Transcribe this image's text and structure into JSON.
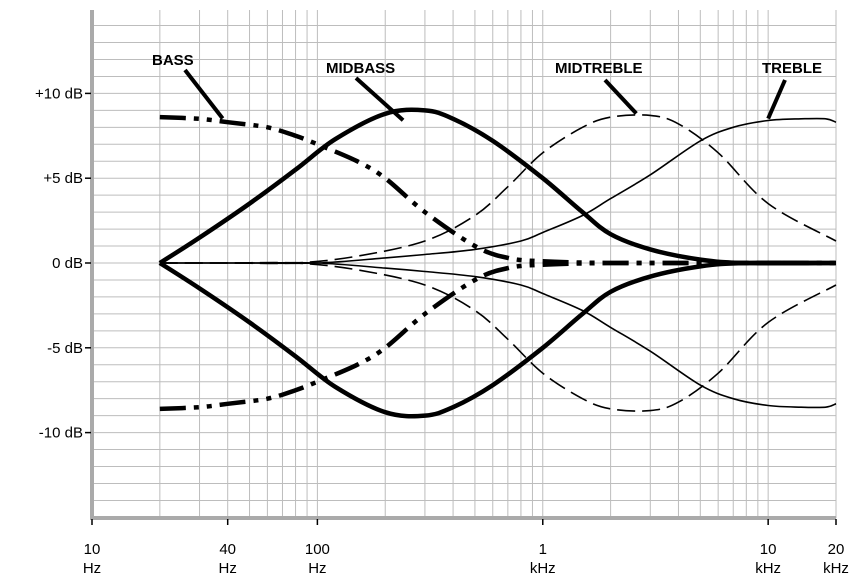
{
  "chart_data": {
    "type": "line",
    "title": "",
    "xlabel": "",
    "ylabel": "",
    "x_scale": "log",
    "xlim": [
      10,
      20000
    ],
    "ylim": [
      -15,
      15
    ],
    "grid": true,
    "x_ticks": [
      {
        "value": 10,
        "line1": "10",
        "line2": "Hz"
      },
      {
        "value": 40,
        "line1": "40",
        "line2": "Hz"
      },
      {
        "value": 100,
        "line1": "100",
        "line2": "Hz"
      },
      {
        "value": 1000,
        "line1": "1",
        "line2": "kHz"
      },
      {
        "value": 10000,
        "line1": "10",
        "line2": "kHz"
      },
      {
        "value": 20000,
        "line1": "20",
        "line2": "kHz"
      }
    ],
    "y_ticks": [
      {
        "value": 10,
        "label": "+10 dB"
      },
      {
        "value": 5,
        "label": "+5 dB"
      },
      {
        "value": 0,
        "label": "0 dB"
      },
      {
        "value": -5,
        "label": "-5 dB"
      },
      {
        "value": -10,
        "label": "-10 dB"
      }
    ],
    "band_labels": [
      "BASS",
      "MIDBASS",
      "MIDTREBLE",
      "TREBLE"
    ],
    "series": [
      {
        "band": "BASS",
        "style": "thick-dashdot",
        "x": [
          20,
          30,
          40,
          60,
          80,
          100,
          150,
          200,
          300,
          500,
          700,
          1000,
          2000,
          5000,
          20000
        ],
        "y": [
          8.6,
          8.5,
          8.3,
          8.0,
          7.5,
          7.0,
          6.0,
          5.0,
          3.0,
          1.0,
          0.3,
          0.1,
          0,
          0,
          0
        ]
      },
      {
        "band": "BASS",
        "style": "thick-dashdot",
        "x": [
          20,
          30,
          40,
          60,
          80,
          100,
          150,
          200,
          300,
          500,
          700,
          1000,
          2000,
          5000,
          20000
        ],
        "y": [
          -8.6,
          -8.5,
          -8.3,
          -8.0,
          -7.5,
          -7.0,
          -6.0,
          -5.0,
          -3.0,
          -1.0,
          -0.3,
          -0.1,
          0,
          0,
          0
        ]
      },
      {
        "band": "MIDBASS",
        "style": "thick-solid",
        "x": [
          20,
          30,
          50,
          80,
          120,
          200,
          300,
          400,
          600,
          1000,
          1500,
          2000,
          3000,
          5000,
          8000,
          20000
        ],
        "y": [
          0,
          1.5,
          3.5,
          5.5,
          7.3,
          8.8,
          9.0,
          8.5,
          7.2,
          5.0,
          3.0,
          1.7,
          0.8,
          0.2,
          0,
          0
        ]
      },
      {
        "band": "MIDBASS",
        "style": "thick-solid",
        "x": [
          20,
          30,
          50,
          80,
          120,
          200,
          300,
          400,
          600,
          1000,
          1500,
          2000,
          3000,
          5000,
          8000,
          20000
        ],
        "y": [
          0,
          -1.5,
          -3.5,
          -5.5,
          -7.3,
          -8.8,
          -9.0,
          -8.5,
          -7.2,
          -5.0,
          -3.0,
          -1.7,
          -0.8,
          -0.2,
          0,
          0
        ]
      },
      {
        "band": "MIDTREBLE",
        "style": "thin-dash",
        "x": [
          20,
          40,
          80,
          150,
          300,
          500,
          700,
          1000,
          1500,
          2000,
          3000,
          4000,
          6000,
          10000,
          20000
        ],
        "y": [
          0,
          0,
          0,
          0.4,
          1.3,
          2.8,
          4.5,
          6.5,
          8.0,
          8.6,
          8.7,
          8.2,
          6.5,
          3.5,
          1.3
        ]
      },
      {
        "band": "MIDTREBLE",
        "style": "thin-dash",
        "x": [
          20,
          40,
          80,
          150,
          300,
          500,
          700,
          1000,
          1500,
          2000,
          3000,
          4000,
          6000,
          10000,
          20000
        ],
        "y": [
          0,
          0,
          0,
          -0.4,
          -1.3,
          -2.8,
          -4.5,
          -6.5,
          -8.0,
          -8.6,
          -8.7,
          -8.2,
          -6.5,
          -3.5,
          -1.3
        ]
      },
      {
        "band": "TREBLE",
        "style": "thin-solid",
        "x": [
          20,
          50,
          100,
          200,
          300,
          500,
          800,
          1000,
          1500,
          2000,
          3000,
          5000,
          7000,
          10000,
          14000,
          18000,
          20000
        ],
        "y": [
          0,
          0,
          0,
          0.3,
          0.5,
          0.8,
          1.3,
          1.8,
          2.8,
          3.8,
          5.2,
          7.2,
          8.0,
          8.4,
          8.5,
          8.5,
          8.3
        ]
      },
      {
        "band": "TREBLE",
        "style": "thin-solid",
        "x": [
          20,
          50,
          100,
          200,
          300,
          500,
          800,
          1000,
          1500,
          2000,
          3000,
          5000,
          7000,
          10000,
          14000,
          18000,
          20000
        ],
        "y": [
          0,
          0,
          0,
          -0.3,
          -0.5,
          -0.8,
          -1.3,
          -1.8,
          -2.8,
          -3.8,
          -5.2,
          -7.2,
          -8.0,
          -8.4,
          -8.5,
          -8.5,
          -8.3
        ]
      }
    ],
    "annotations": [
      {
        "text": "BASS",
        "target_x": 38,
        "target_y": 8.4
      },
      {
        "text": "MIDBASS",
        "target_x": 240,
        "target_y": 8.3
      },
      {
        "text": "MIDTREBLE",
        "target_x": 2600,
        "target_y": 8.7
      },
      {
        "text": "TREBLE",
        "target_x": 10000,
        "target_y": 8.4
      }
    ]
  }
}
